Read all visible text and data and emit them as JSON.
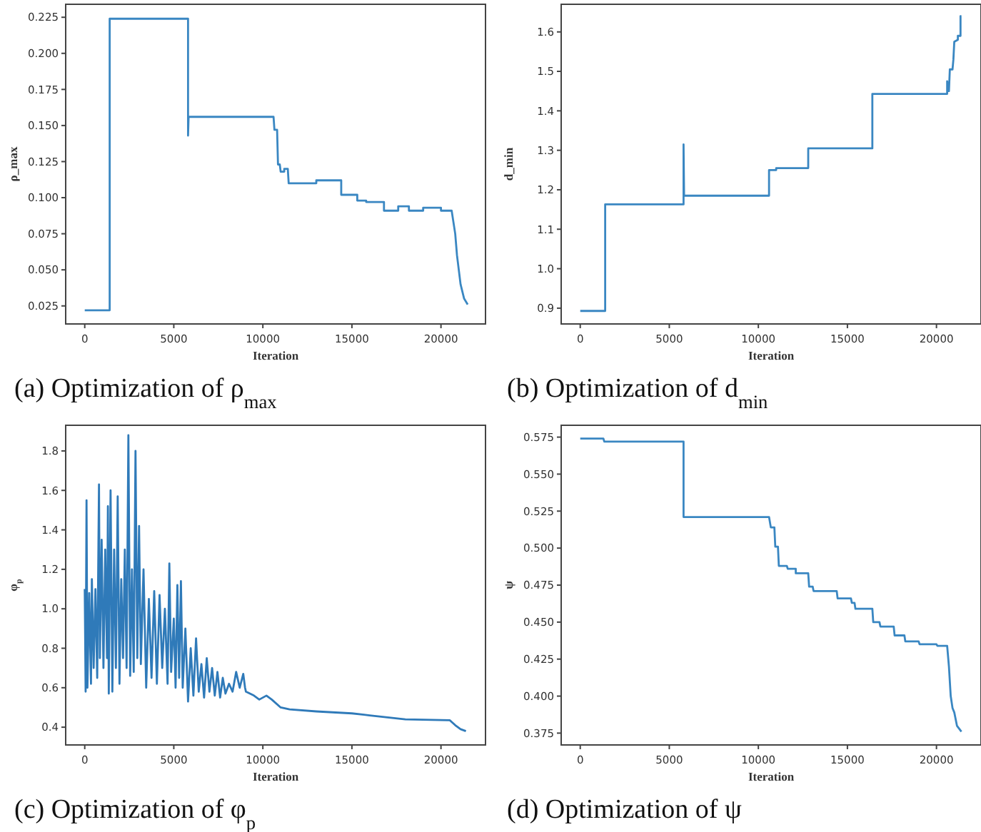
{
  "chart_data": [
    {
      "type": "line",
      "title": "(a)  Optimization of ρ$_{max}$",
      "xlabel": "Iteration",
      "ylabel": "ρ_max",
      "color": "#3a87c2",
      "grid": false,
      "x": [
        0,
        1400,
        1400,
        5800,
        5800,
        5830,
        10600,
        10650,
        10800,
        10850,
        10950,
        11000,
        11200,
        11200,
        11400,
        11450,
        13000,
        13000,
        14400,
        14400,
        15300,
        15300,
        15800,
        15800,
        16800,
        16800,
        17600,
        17600,
        18200,
        18200,
        19000,
        19000,
        20000,
        20000,
        20600,
        20800,
        20900,
        21000,
        21100,
        21300,
        21500
      ],
      "values": [
        0.022,
        0.022,
        0.224,
        0.224,
        0.143,
        0.156,
        0.156,
        0.147,
        0.147,
        0.123,
        0.123,
        0.118,
        0.118,
        0.12,
        0.12,
        0.11,
        0.11,
        0.112,
        0.112,
        0.102,
        0.102,
        0.098,
        0.098,
        0.097,
        0.097,
        0.091,
        0.091,
        0.094,
        0.094,
        0.091,
        0.091,
        0.093,
        0.093,
        0.091,
        0.091,
        0.075,
        0.06,
        0.05,
        0.04,
        0.03,
        0.026
      ],
      "xlim": [
        -1070,
        22500
      ],
      "ylim": [
        0.0125,
        0.234
      ],
      "xticks": [
        0,
        5000,
        10000,
        15000,
        20000
      ],
      "yticks": [
        0.025,
        {
          "value": 0.05,
          "label": "0.050"
        },
        0.075,
        {
          "value": 0.1,
          "label": "0.100"
        },
        0.125,
        {
          "value": 0.15,
          "label": "0.150"
        },
        0.175,
        {
          "value": 0.2,
          "label": "0.200"
        },
        0.225
      ]
    },
    {
      "type": "line",
      "title": "(b) Optimization of d$_{min}$",
      "xlabel": "Iteration",
      "ylabel": "d_min",
      "color": "#3a87c2",
      "grid": false,
      "x": [
        0,
        1400,
        1400,
        5800,
        5800,
        5830,
        10600,
        10600,
        11000,
        11000,
        12800,
        12800,
        16400,
        16400,
        20600,
        20600,
        20700,
        20750,
        20900,
        20950,
        21000,
        21200,
        21200,
        21350,
        21350,
        21400
      ],
      "values": [
        0.893,
        0.893,
        1.163,
        1.163,
        1.315,
        1.185,
        1.185,
        1.25,
        1.25,
        1.255,
        1.255,
        1.305,
        1.305,
        1.443,
        1.443,
        1.475,
        1.45,
        1.505,
        1.505,
        1.53,
        1.575,
        1.58,
        1.59,
        1.59,
        1.64,
        1.64
      ],
      "xlim": [
        -1070,
        22500
      ],
      "ylim": [
        0.86,
        1.67
      ],
      "xticks": [
        0,
        5000,
        10000,
        15000,
        20000
      ],
      "yticks": [
        0.9,
        {
          "value": 1.0,
          "label": "1.0"
        },
        1.1,
        1.2,
        1.3,
        1.4,
        1.5,
        1.6
      ]
    },
    {
      "type": "line",
      "title": "(c)  Optimization of φ$_{p}$",
      "xlabel": "Iteration",
      "ylabel": "φ$_{p}$",
      "color": "#2f7ab9",
      "grid": false,
      "x": [
        0,
        50,
        100,
        150,
        250,
        350,
        400,
        500,
        600,
        700,
        800,
        850,
        950,
        1050,
        1150,
        1250,
        1300,
        1350,
        1450,
        1550,
        1650,
        1750,
        1850,
        1950,
        2050,
        2150,
        2250,
        2350,
        2450,
        2550,
        2650,
        2750,
        2850,
        2950,
        3050,
        3150,
        3300,
        3450,
        3600,
        3750,
        3900,
        4050,
        4200,
        4350,
        4500,
        4650,
        4750,
        4850,
        5000,
        5100,
        5200,
        5300,
        5400,
        5500,
        5650,
        5800,
        5950,
        6100,
        6250,
        6400,
        6550,
        6700,
        6850,
        7000,
        7150,
        7300,
        7450,
        7600,
        7750,
        7900,
        8100,
        8300,
        8500,
        8700,
        8900,
        9000,
        9050,
        9500,
        9800,
        10200,
        10500,
        11000,
        11500,
        13000,
        15000,
        16000,
        17000,
        18000,
        20500,
        20800,
        21100,
        21400
      ],
      "values": [
        1.1,
        0.58,
        1.55,
        0.6,
        1.08,
        0.62,
        1.15,
        0.7,
        1.1,
        0.65,
        1.63,
        0.75,
        1.35,
        0.7,
        1.3,
        0.75,
        1.52,
        0.57,
        1.6,
        0.58,
        1.3,
        0.7,
        1.57,
        0.62,
        1.15,
        0.75,
        1.3,
        0.7,
        1.88,
        0.66,
        1.2,
        0.68,
        1.8,
        0.75,
        1.42,
        0.72,
        1.2,
        0.6,
        1.05,
        0.65,
        1.09,
        0.62,
        1.07,
        0.7,
        1.0,
        0.62,
        1.23,
        0.68,
        0.95,
        0.6,
        1.12,
        0.65,
        1.14,
        0.6,
        0.9,
        0.53,
        0.8,
        0.56,
        0.85,
        0.58,
        0.72,
        0.55,
        0.75,
        0.58,
        0.7,
        0.56,
        0.68,
        0.55,
        0.65,
        0.57,
        0.62,
        0.58,
        0.68,
        0.6,
        0.67,
        0.6,
        0.58,
        0.56,
        0.54,
        0.56,
        0.54,
        0.5,
        0.49,
        0.48,
        0.47,
        0.46,
        0.45,
        0.44,
        0.435,
        0.41,
        0.39,
        0.38
      ],
      "xlim": [
        -1070,
        22500
      ],
      "ylim": [
        0.31,
        1.93
      ],
      "xticks": [
        0,
        5000,
        10000,
        15000,
        20000
      ],
      "yticks": [
        0.4,
        0.6,
        0.8,
        {
          "value": 1.0,
          "label": "1.0"
        },
        1.2,
        1.4,
        1.6,
        1.8
      ]
    },
    {
      "type": "line",
      "title": "(d) Optimization of ψ",
      "xlabel": "Iteration",
      "ylabel": "ψ",
      "color": "#3a87c2",
      "grid": false,
      "x": [
        0,
        1300,
        1350,
        5800,
        5800,
        10600,
        10700,
        10900,
        10950,
        11100,
        11150,
        11600,
        11650,
        12100,
        12100,
        12800,
        12850,
        13050,
        13100,
        14400,
        14450,
        15200,
        15250,
        15400,
        15450,
        16400,
        16450,
        16800,
        16850,
        17600,
        17650,
        18200,
        18250,
        19000,
        19050,
        20000,
        20050,
        20600,
        20700,
        20800,
        20900,
        21000,
        21150,
        21400
      ],
      "values": [
        0.574,
        0.574,
        0.572,
        0.572,
        0.521,
        0.521,
        0.514,
        0.514,
        0.501,
        0.501,
        0.488,
        0.488,
        0.486,
        0.486,
        0.483,
        0.483,
        0.474,
        0.474,
        0.471,
        0.471,
        0.466,
        0.466,
        0.463,
        0.463,
        0.459,
        0.459,
        0.45,
        0.45,
        0.447,
        0.447,
        0.441,
        0.441,
        0.437,
        0.437,
        0.435,
        0.435,
        0.434,
        0.434,
        0.42,
        0.4,
        0.392,
        0.389,
        0.38,
        0.376
      ],
      "xlim": [
        -1070,
        22500
      ],
      "ylim": [
        0.367,
        0.583
      ],
      "xticks": [
        0,
        5000,
        10000,
        15000,
        20000
      ],
      "yticks": [
        0.375,
        {
          "value": 0.4,
          "label": "0.400"
        },
        0.425,
        {
          "value": 0.45,
          "label": "0.450"
        },
        0.475,
        {
          "value": 0.5,
          "label": "0.500"
        },
        0.525,
        {
          "value": 0.55,
          "label": "0.550"
        },
        0.575
      ]
    }
  ]
}
